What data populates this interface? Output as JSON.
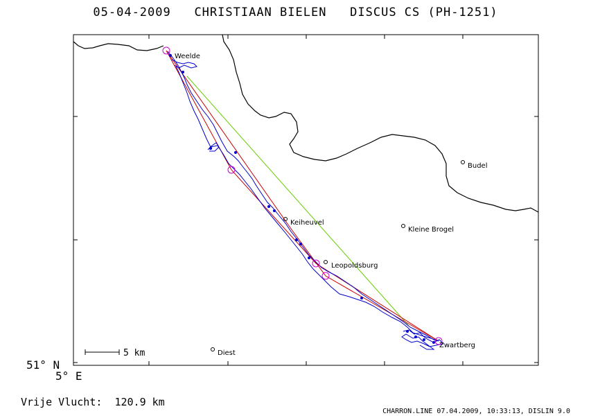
{
  "title": "05-04-2009   CHRISTIAAN BIELEN   DISCUS CS (PH-1251)",
  "map": {
    "places": [
      {
        "name": "Weelde"
      },
      {
        "name": "Budel"
      },
      {
        "name": "Keiheuvel"
      },
      {
        "name": "Kleine Brogel"
      },
      {
        "name": "Leopoldsburg"
      },
      {
        "name": "Diest"
      },
      {
        "name": "Zwartberg"
      }
    ],
    "scale_label": "5 km",
    "lat_label": "51° N",
    "lon_label": "5° E",
    "colors": {
      "border": "#000000",
      "flight_track": "#0000cc",
      "task_line": "#cc0000",
      "closing_leg": "#66cc00",
      "turnpoint": "#cc00cc"
    }
  },
  "distance_text": "Vrije Vlucht:  120.9 km",
  "footer": "CHARRON.LINE 07.04.2009, 10:33:13, DISLIN 9.0"
}
